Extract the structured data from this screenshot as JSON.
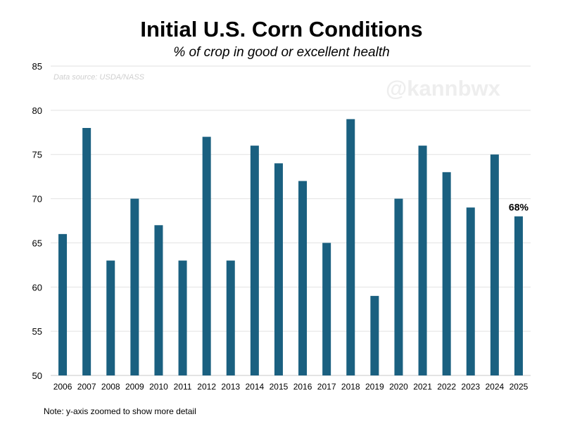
{
  "chart_data": {
    "type": "bar",
    "title": "Initial U.S. Corn Conditions",
    "subtitle": "% of crop in good or excellent health",
    "source": "Data source: USDA/NASS",
    "watermark": "@kannbwx",
    "note": "Note: y-axis zoomed to show more detail",
    "categories": [
      "2006",
      "2007",
      "2008",
      "2009",
      "2010",
      "2011",
      "2012",
      "2013",
      "2014",
      "2015",
      "2016",
      "2017",
      "2018",
      "2019",
      "2020",
      "2021",
      "2022",
      "2023",
      "2024",
      "2025"
    ],
    "values": [
      66,
      78,
      63,
      70,
      67,
      63,
      77,
      63,
      76,
      74,
      72,
      65,
      79,
      59,
      70,
      76,
      73,
      69,
      75,
      68
    ],
    "ylim": [
      50,
      85
    ],
    "yticks": [
      50,
      55,
      60,
      65,
      70,
      75,
      80,
      85
    ],
    "grid": true,
    "bar_color": "#1a6080",
    "annotations": [
      {
        "category": "2025",
        "text": "68%"
      }
    ]
  }
}
